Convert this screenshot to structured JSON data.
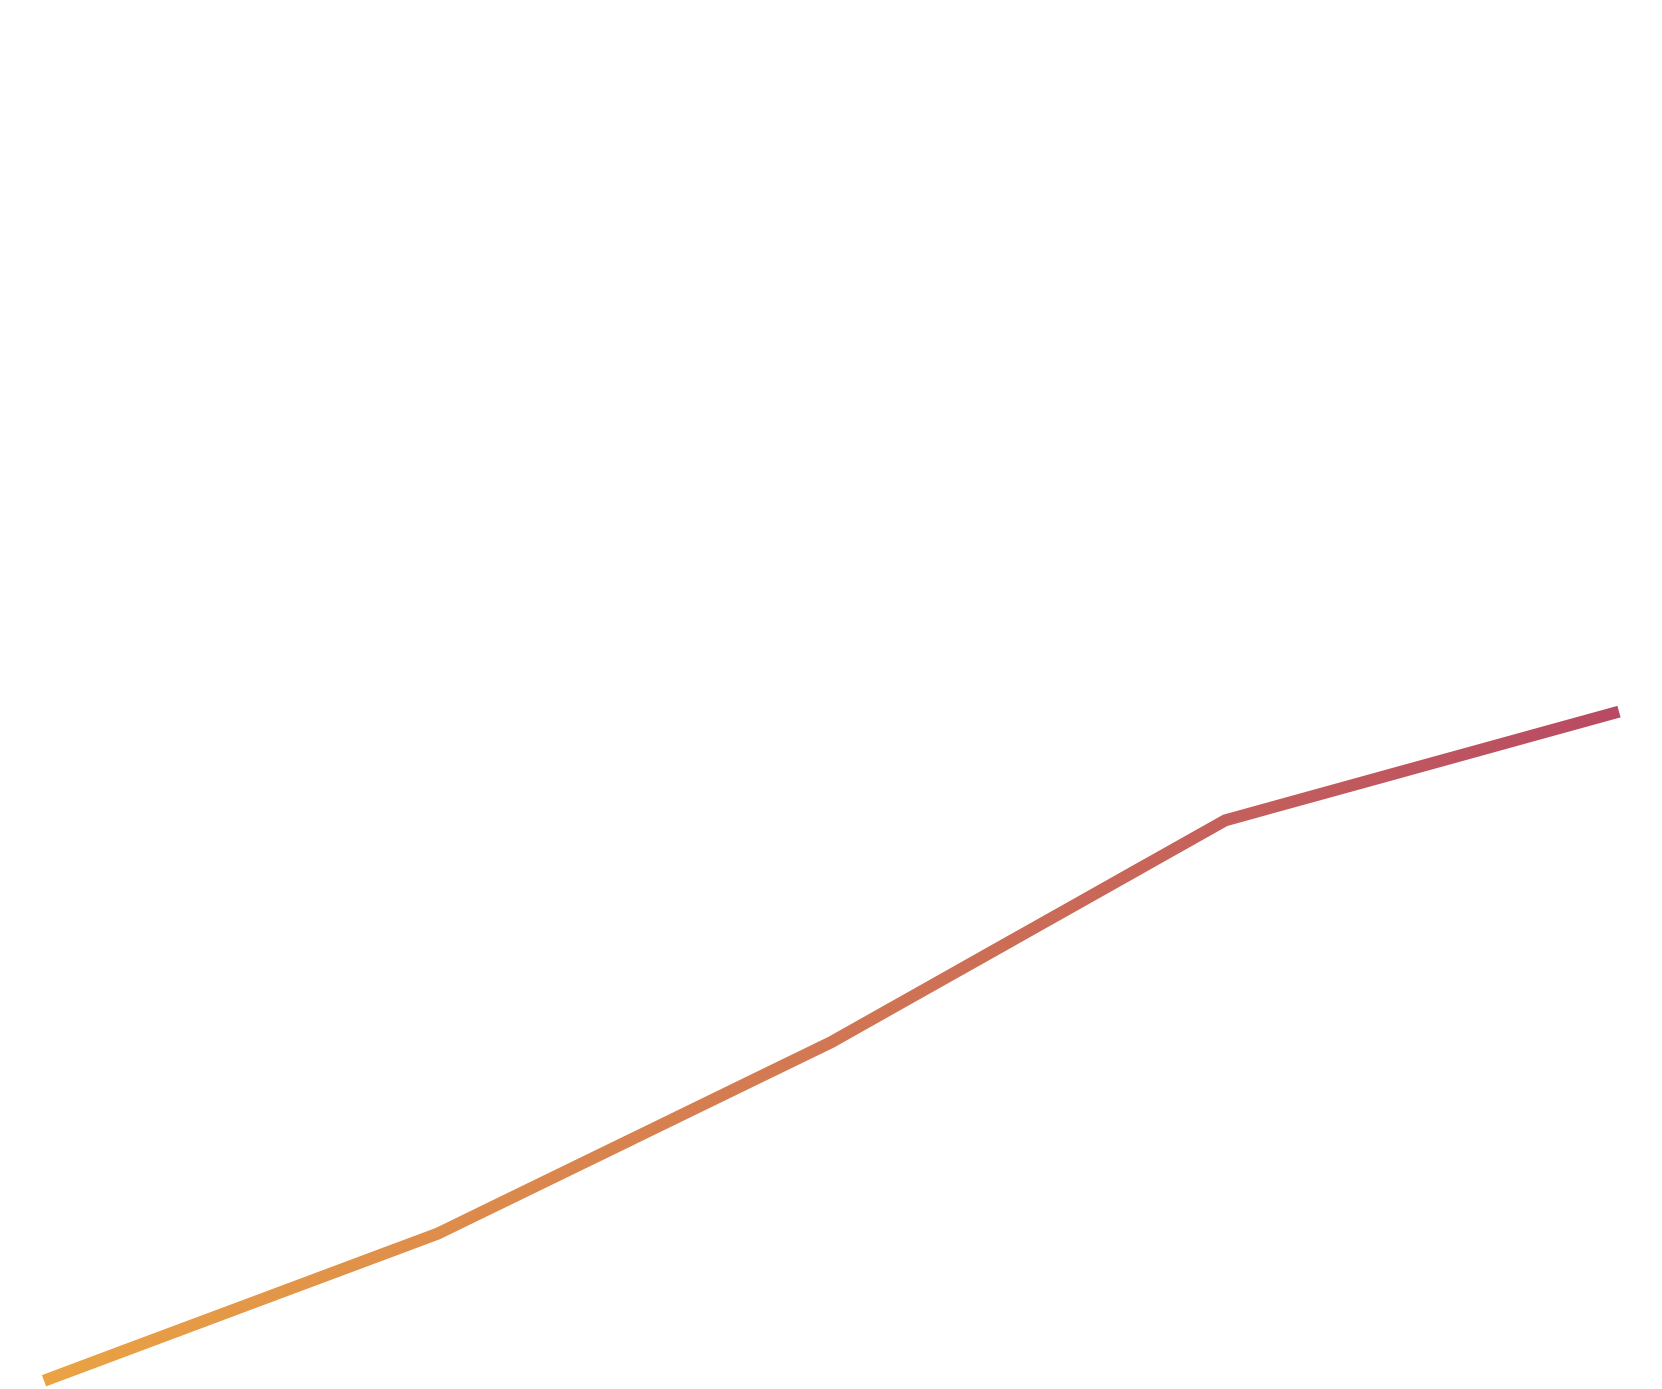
{
  "chart_data": {
    "type": "line",
    "title": "",
    "xlabel": "",
    "ylabel": "",
    "grid": false,
    "legend": "none",
    "x": [
      1,
      2,
      3,
      4,
      5
    ],
    "series": [
      {
        "values": [
          0,
          142,
          327,
          541,
          646
        ],
        "color_start": "#eaa343",
        "color_end": "#b84a63"
      }
    ],
    "ylim": [
      -8,
      1333
    ]
  }
}
